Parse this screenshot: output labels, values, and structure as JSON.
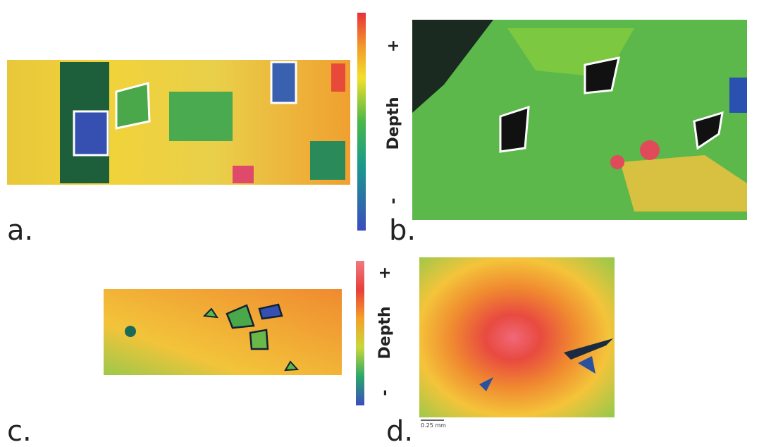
{
  "panels": [
    {
      "label": "a."
    },
    {
      "label": "b."
    },
    {
      "label": "c."
    },
    {
      "label": "d."
    }
  ],
  "colorbars": [
    {
      "minus": "-",
      "title": "Depth",
      "plus": "+"
    },
    {
      "minus": "-",
      "title": "Depth",
      "plus": "+"
    }
  ],
  "scale_bar": "0.25 mm"
}
